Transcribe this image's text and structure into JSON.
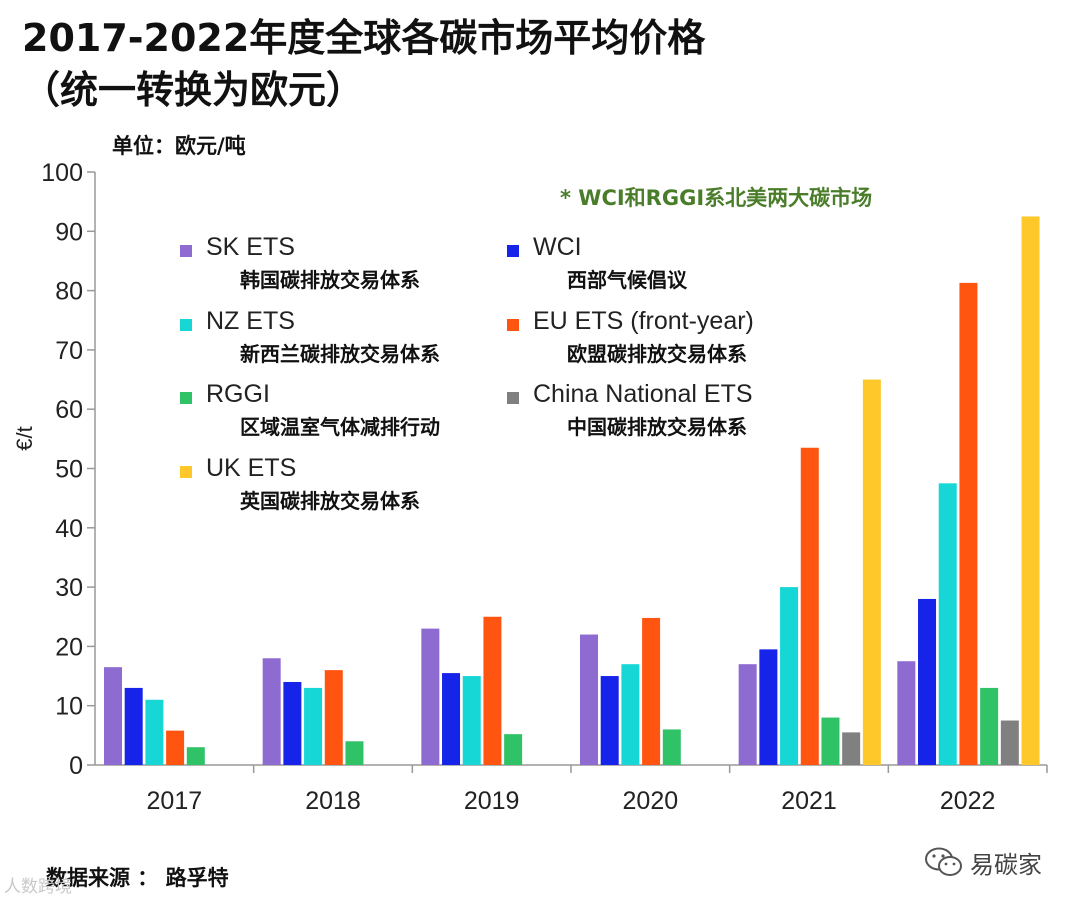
{
  "title": {
    "line1": "2017-2022年度全球各碳市场平均价格",
    "line2": "（统一转换为欧元）"
  },
  "unit_label": "单位：欧元/吨",
  "note": "* WCI和RGGI系北美两大碳市场",
  "source": "数据来源 ： 路孚特",
  "brand": {
    "name": "易碳家",
    "icon": "wechat-icon"
  },
  "watermark": "人数跨境",
  "colors": {
    "sk": "#8e6bd0",
    "wci": "#1524e8",
    "nz": "#16d6d6",
    "eu": "#ff5511",
    "rggi": "#2fc266",
    "china": "#808080",
    "uk": "#ffc82a"
  },
  "chart_data": {
    "type": "bar",
    "title": "2017-2022年度全球各碳市场平均价格（统一转换为欧元）",
    "ylabel": "€/t",
    "xlabel": "",
    "ylim": [
      0,
      100
    ],
    "yticks": [
      0,
      10,
      20,
      30,
      40,
      50,
      60,
      70,
      80,
      90,
      100
    ],
    "categories": [
      "2017",
      "2018",
      "2019",
      "2020",
      "2021",
      "2022"
    ],
    "series": [
      {
        "key": "sk",
        "name": "SK ETS",
        "name_cn": "韩国碳排放交易体系",
        "values": [
          16.5,
          18,
          23,
          22,
          17,
          17.5
        ]
      },
      {
        "key": "wci",
        "name": "WCI",
        "name_cn": "西部气候倡议",
        "values": [
          13,
          14,
          15.5,
          15,
          19.5,
          28
        ]
      },
      {
        "key": "nz",
        "name": "NZ ETS",
        "name_cn": "新西兰碳排放交易体系",
        "values": [
          11,
          13,
          15,
          17,
          30,
          47.5
        ]
      },
      {
        "key": "eu",
        "name": "EU ETS (front-year)",
        "name_cn": "欧盟碳排放交易体系",
        "values": [
          5.8,
          16,
          25,
          24.8,
          53.5,
          81.3
        ]
      },
      {
        "key": "rggi",
        "name": "RGGI",
        "name_cn": "区域温室气体减排行动",
        "values": [
          3,
          4,
          5.2,
          6,
          8,
          13
        ]
      },
      {
        "key": "china",
        "name": "China National ETS",
        "name_cn": "中国碳排放交易体系",
        "values": [
          null,
          null,
          null,
          null,
          5.5,
          7.5
        ]
      },
      {
        "key": "uk",
        "name": "UK ETS",
        "name_cn": "英国碳排放交易体系",
        "values": [
          null,
          null,
          null,
          null,
          65,
          92.5
        ]
      }
    ]
  }
}
